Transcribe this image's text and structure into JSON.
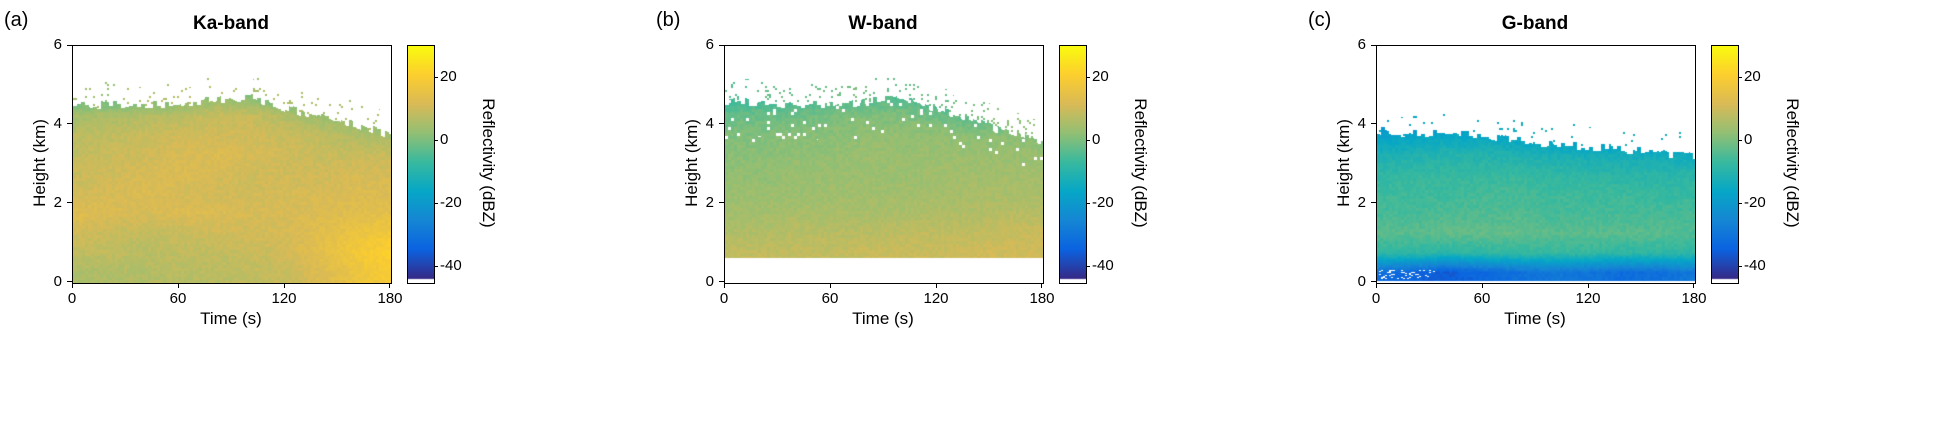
{
  "figure": {
    "background": "#ffffff",
    "text_color": "#000000",
    "panels": [
      {
        "label": "(a)",
        "title": "Ka-band",
        "xlabel": "Time (s)",
        "ylabel": "Height (km)",
        "colorbar_label": "Reflectivity (dBZ)"
      },
      {
        "label": "(b)",
        "title": "W-band",
        "xlabel": "Time (s)",
        "ylabel": "Height (km)",
        "colorbar_label": "Reflectivity (dBZ)"
      },
      {
        "label": "(c)",
        "title": "G-band",
        "xlabel": "Time (s)",
        "ylabel": "Height (km)",
        "colorbar_label": "Reflectivity (dBZ)"
      }
    ]
  },
  "chart_data": [
    {
      "type": "heatmap",
      "title": "Ka-band",
      "xlabel": "Time (s)",
      "ylabel": "Height (km)",
      "x_range": [
        0,
        180
      ],
      "y_range": [
        0,
        6
      ],
      "x_ticks": [
        0,
        60,
        120,
        180
      ],
      "y_ticks": [
        0,
        2,
        4,
        6
      ],
      "clim": [
        -45,
        30
      ],
      "colorbar": {
        "label": "Reflectivity (dBZ)",
        "ticks": [
          20,
          0,
          -20,
          -40
        ]
      },
      "colormap": {
        "name": "parula",
        "stops": [
          "#352a87",
          "#0b63e0",
          "#1586d3",
          "#06a7c6",
          "#38b99e",
          "#92bf73",
          "#d9ba56",
          "#fcce2e",
          "#f9fb0e"
        ]
      },
      "times": [
        0,
        20,
        40,
        60,
        80,
        100,
        120,
        140,
        160,
        180
      ],
      "heights": [
        0.25,
        0.75,
        1.25,
        1.75,
        2.25,
        2.75,
        3.25,
        3.75,
        4.25,
        4.75
      ],
      "values": [
        [
          5,
          6,
          6,
          7,
          7,
          8,
          9,
          12,
          16,
          19
        ],
        [
          8,
          8,
          7,
          8,
          8,
          9,
          10,
          14,
          18,
          21
        ],
        [
          10,
          9,
          8,
          9,
          10,
          10,
          11,
          13,
          16,
          18
        ],
        [
          13,
          12,
          11,
          12,
          12,
          11,
          11,
          12,
          13,
          14
        ],
        [
          10,
          11,
          12,
          11,
          10,
          10,
          11,
          11,
          12,
          12
        ],
        [
          9,
          10,
          11,
          12,
          11,
          10,
          10,
          10,
          11,
          11
        ],
        [
          8,
          9,
          10,
          11,
          12,
          11,
          10,
          9,
          9,
          9
        ],
        [
          7,
          8,
          9,
          10,
          10,
          10,
          9,
          8,
          6,
          4
        ],
        [
          4,
          5,
          6,
          7,
          9,
          9,
          6,
          3,
          0,
          -4
        ],
        [
          -4,
          -4,
          -3,
          -2,
          1,
          0,
          -4,
          -10,
          -16,
          -20
        ]
      ],
      "cloud_top": [
        4.55,
        4.5,
        4.5,
        4.5,
        4.65,
        4.7,
        4.45,
        4.2,
        4.0,
        3.75
      ],
      "cloud_base": 0.0,
      "speckle": 0.05
    },
    {
      "type": "heatmap",
      "title": "W-band",
      "xlabel": "Time (s)",
      "ylabel": "Height (km)",
      "x_range": [
        0,
        180
      ],
      "y_range": [
        0,
        6
      ],
      "x_ticks": [
        0,
        60,
        120,
        180
      ],
      "y_ticks": [
        0,
        2,
        4,
        6
      ],
      "clim": [
        -45,
        30
      ],
      "colorbar": {
        "label": "Reflectivity (dBZ)",
        "ticks": [
          20,
          0,
          -20,
          -40
        ]
      },
      "colormap": {
        "name": "parula",
        "stops": [
          "#352a87",
          "#0b63e0",
          "#1586d3",
          "#06a7c6",
          "#38b99e",
          "#92bf73",
          "#d9ba56",
          "#fcce2e",
          "#f9fb0e"
        ]
      },
      "times": [
        0,
        20,
        40,
        60,
        80,
        100,
        120,
        140,
        160,
        180
      ],
      "heights": [
        0.25,
        0.75,
        1.25,
        1.75,
        2.25,
        2.75,
        3.25,
        3.75,
        4.25,
        4.75
      ],
      "values": [
        [
          8,
          8,
          8,
          8,
          9,
          9,
          9,
          10,
          10,
          10
        ],
        [
          8,
          8,
          8,
          8,
          9,
          9,
          9,
          10,
          10,
          10
        ],
        [
          6,
          6,
          7,
          7,
          7,
          8,
          8,
          8,
          9,
          9
        ],
        [
          4,
          4,
          5,
          5,
          5,
          5,
          6,
          6,
          7,
          7
        ],
        [
          3,
          3,
          3,
          4,
          4,
          4,
          4,
          5,
          5,
          5
        ],
        [
          2,
          2,
          3,
          3,
          3,
          3,
          4,
          4,
          4,
          4
        ],
        [
          1,
          1,
          2,
          2,
          3,
          3,
          3,
          3,
          3,
          3
        ],
        [
          0,
          0,
          1,
          1,
          2,
          2,
          2,
          1,
          1,
          0
        ],
        [
          -3,
          -2,
          -2,
          -1,
          0,
          0,
          -2,
          -4,
          -6,
          -8
        ],
        [
          -8,
          -8,
          -7,
          -6,
          -5,
          -5,
          -8,
          -12,
          -16,
          -20
        ]
      ],
      "cloud_top": [
        4.6,
        4.55,
        4.5,
        4.5,
        4.6,
        4.7,
        4.4,
        4.1,
        3.85,
        3.6
      ],
      "cloud_base": 0.62,
      "speckle": 0.09
    },
    {
      "type": "heatmap",
      "title": "G-band",
      "xlabel": "Time (s)",
      "ylabel": "Height (km)",
      "x_range": [
        0,
        180
      ],
      "y_range": [
        0,
        6
      ],
      "x_ticks": [
        0,
        60,
        120,
        180
      ],
      "y_ticks": [
        0,
        2,
        4,
        6
      ],
      "clim": [
        -45,
        30
      ],
      "colorbar": {
        "label": "Reflectivity (dBZ)",
        "ticks": [
          20,
          0,
          -20,
          -40
        ]
      },
      "colormap": {
        "name": "parula",
        "stops": [
          "#352a87",
          "#0b63e0",
          "#1586d3",
          "#06a7c6",
          "#38b99e",
          "#92bf73",
          "#d9ba56",
          "#fcce2e",
          "#f9fb0e"
        ]
      },
      "times": [
        0,
        20,
        40,
        60,
        80,
        100,
        120,
        140,
        160,
        180
      ],
      "heights": [
        0.25,
        0.75,
        1.25,
        1.75,
        2.25,
        2.75,
        3.25,
        3.75,
        4.25,
        4.75
      ],
      "values": [
        [
          -33,
          -35,
          -37,
          -34,
          -32,
          -30,
          -31,
          -33,
          -32,
          -30
        ],
        [
          -9,
          -9,
          -10,
          -9,
          -8,
          -8,
          -8,
          -9,
          -9,
          -9
        ],
        [
          -4,
          -4,
          -3,
          -3,
          -3,
          -4,
          -4,
          -4,
          -4,
          -5
        ],
        [
          -6,
          -6,
          -5,
          -5,
          -5,
          -6,
          -6,
          -6,
          -6,
          -6
        ],
        [
          -7,
          -7,
          -7,
          -6,
          -6,
          -7,
          -7,
          -7,
          -8,
          -8
        ],
        [
          -9,
          -8,
          -8,
          -8,
          -8,
          -9,
          -9,
          -10,
          -10,
          -10
        ],
        [
          -13,
          -12,
          -11,
          -11,
          -12,
          -13,
          -14,
          -14,
          -15,
          -15
        ],
        [
          -19,
          -18,
          -17,
          -17,
          -18,
          -20,
          -22,
          -24,
          -26,
          -28
        ],
        [
          -28,
          -27,
          -26,
          -26,
          -27,
          -28,
          -30,
          -32,
          -33,
          -34
        ],
        [
          -35,
          -35,
          -34,
          -34,
          -35,
          -36,
          -37,
          -38,
          -39,
          -40
        ]
      ],
      "cloud_top": [
        3.85,
        3.8,
        3.78,
        3.72,
        3.6,
        3.5,
        3.45,
        3.38,
        3.28,
        3.2
      ],
      "cloud_base": 0.03,
      "speckle": 0.03
    }
  ]
}
